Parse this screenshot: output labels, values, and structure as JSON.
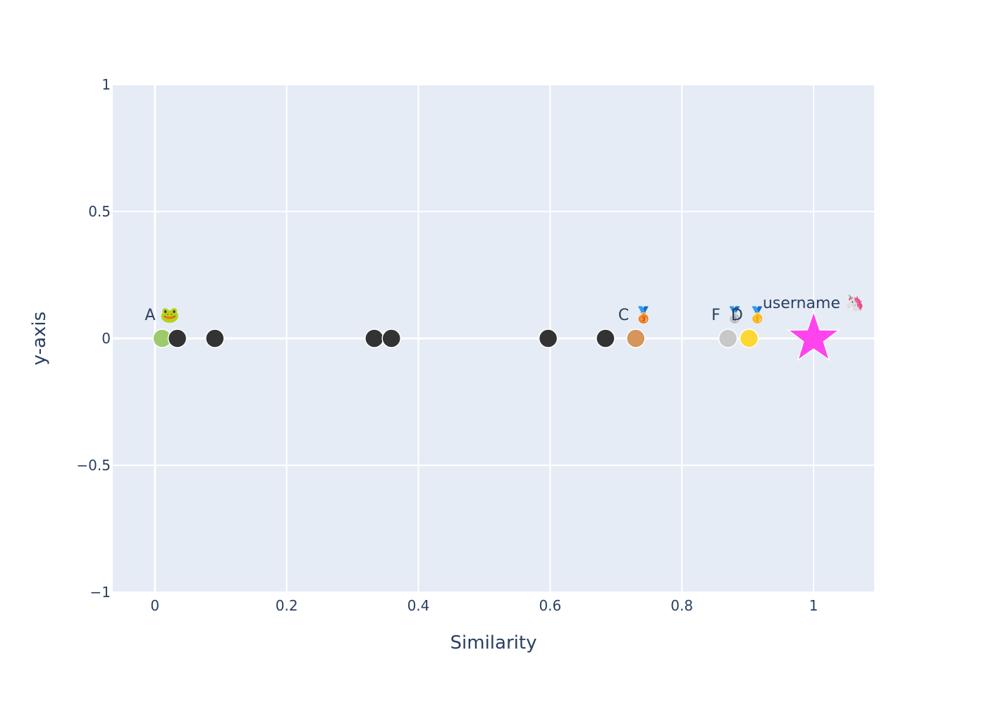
{
  "chart_data": {
    "type": "scatter",
    "title": "",
    "xlabel": "Similarity",
    "ylabel": "y-axis",
    "xlim": [
      -0.064,
      1.092
    ],
    "ylim": [
      -1,
      1
    ],
    "x_ticks": [
      {
        "value": 0,
        "label": "0"
      },
      {
        "value": 0.2,
        "label": "0.2"
      },
      {
        "value": 0.4,
        "label": "0.4"
      },
      {
        "value": 0.6,
        "label": "0.6"
      },
      {
        "value": 0.8,
        "label": "0.8"
      },
      {
        "value": 1,
        "label": "1"
      }
    ],
    "y_ticks": [
      {
        "value": 1,
        "label": "1"
      },
      {
        "value": 0.5,
        "label": "0.5"
      },
      {
        "value": 0,
        "label": "0"
      },
      {
        "value": -0.5,
        "label": "−0.5"
      },
      {
        "value": -1,
        "label": "−1"
      }
    ],
    "grid": true,
    "background_color": "#e5ecf6",
    "points": [
      {
        "x": 0.011,
        "y": 0,
        "color": "#9dcb6b",
        "symbol": "circle",
        "label": "A 🐸"
      },
      {
        "x": 0.034,
        "y": 0,
        "color": "#333333",
        "symbol": "circle",
        "label": ""
      },
      {
        "x": 0.091,
        "y": 0,
        "color": "#333333",
        "symbol": "circle",
        "label": ""
      },
      {
        "x": 0.333,
        "y": 0,
        "color": "#333333",
        "symbol": "circle",
        "label": ""
      },
      {
        "x": 0.359,
        "y": 0,
        "color": "#333333",
        "symbol": "circle",
        "label": ""
      },
      {
        "x": 0.597,
        "y": 0,
        "color": "#333333",
        "symbol": "circle",
        "label": ""
      },
      {
        "x": 0.684,
        "y": 0,
        "color": "#333333",
        "symbol": "circle",
        "label": ""
      },
      {
        "x": 0.73,
        "y": 0,
        "color": "#d6955b",
        "symbol": "circle",
        "label": "C 🥉"
      },
      {
        "x": 0.87,
        "y": 0,
        "color": "#c8c8c8",
        "symbol": "circle",
        "label": "F 🥈"
      },
      {
        "x": 0.902,
        "y": 0,
        "color": "#fdd835",
        "symbol": "circle",
        "label": "D 🥇"
      },
      {
        "x": 1.0,
        "y": 0,
        "color": "#ff44ee",
        "symbol": "star",
        "label": "username 🦄"
      }
    ]
  }
}
